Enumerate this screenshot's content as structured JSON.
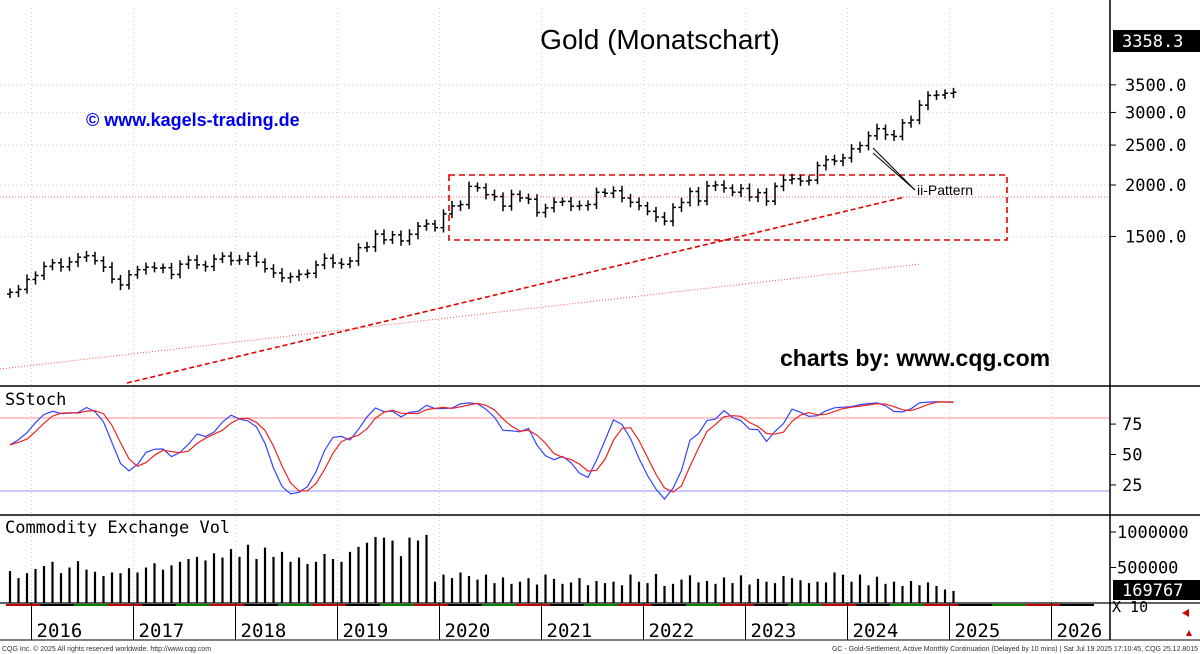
{
  "chart_data": {
    "type": "ohlc",
    "title": "Gold (Monatschart)",
    "watermark_left": "© www.kagels-trading.de",
    "watermark_right": "charts by: www.cqg.com",
    "annotation": "ii-Pattern",
    "last_price_label": "3358.3",
    "price_axis": {
      "scale": "log",
      "range": [
        1100,
        3700
      ],
      "ticks": [
        {
          "value": 1500,
          "label": "1500.0"
        },
        {
          "value": 2000,
          "label": "2000.0"
        },
        {
          "value": 2500,
          "label": "2500.0"
        },
        {
          "value": 3000,
          "label": "3000.0"
        },
        {
          "value": 3500,
          "label": "3500.0"
        }
      ]
    },
    "x_axis": {
      "start": "2015-10",
      "end": "2026-11",
      "year_labels": [
        "2016",
        "2017",
        "2018",
        "2019",
        "2020",
        "2021",
        "2022",
        "2023",
        "2024",
        "2025",
        "2026"
      ]
    },
    "series": [
      {
        "values": [
          1098,
          1116,
          1180,
          1206,
          1269,
          1295,
          1266,
          1301,
          1336,
          1347,
          1310,
          1264,
          1182,
          1144,
          1211,
          1246,
          1264,
          1257,
          1260,
          1213,
          1285,
          1315,
          1280,
          1268,
          1322,
          1344,
          1311,
          1316,
          1343,
          1299,
          1253,
          1223,
          1190,
          1198,
          1214,
          1221,
          1279,
          1328,
          1293,
          1284,
          1308,
          1409,
          1415,
          1520,
          1472,
          1514,
          1463,
          1519,
          1589,
          1609,
          1576,
          1702,
          1780,
          1793,
          1985,
          1970,
          1895,
          1875,
          1777,
          1898,
          1860,
          1847,
          1715,
          1760,
          1818,
          1825,
          1777,
          1783,
          1794,
          1920,
          1910,
          1937,
          1859,
          1816,
          1781,
          1726,
          1672,
          1634,
          1765,
          1814,
          1929,
          1829,
          1990,
          2000,
          1965,
          1921,
          1962,
          1870,
          1916,
          1827,
          1985,
          2057,
          2071,
          2045,
          2054,
          2230,
          2303,
          2286,
          2327,
          2448,
          2493,
          2633,
          2740,
          2650,
          2624,
          2830,
          2875,
          3125,
          3300,
          3307,
          3340,
          3358
        ]
      }
    ],
    "stoch": {
      "label": "SStoch",
      "range": [
        0,
        100
      ],
      "ticks": [
        {
          "value": 25,
          "label": "25"
        },
        {
          "value": 50,
          "label": "50"
        },
        {
          "value": 75,
          "label": "75"
        }
      ],
      "upper_line": 80,
      "lower_line": 20
    },
    "volume": {
      "label": "Commodity Exchange Vol",
      "ticks": [
        {
          "value": 500000,
          "label": "500000"
        },
        {
          "value": 1000000,
          "label": "1000000"
        }
      ],
      "last_label": "169767",
      "multiplier_label": "X 10",
      "values": [
        450000,
        350000,
        420000,
        480000,
        520000,
        580000,
        420000,
        500000,
        590000,
        470000,
        440000,
        380000,
        430000,
        420000,
        490000,
        430000,
        500000,
        560000,
        470000,
        530000,
        580000,
        620000,
        650000,
        600000,
        700000,
        640000,
        760000,
        650000,
        820000,
        620000,
        780000,
        650000,
        720000,
        580000,
        640000,
        550000,
        580000,
        690000,
        620000,
        580000,
        720000,
        790000,
        850000,
        930000,
        920000,
        880000,
        660000,
        920000,
        880000,
        960000,
        300000,
        400000,
        350000,
        430000,
        380000,
        330000,
        400000,
        280000,
        360000,
        270000,
        300000,
        350000,
        260000,
        400000,
        340000,
        270000,
        290000,
        350000,
        250000,
        310000,
        280000,
        300000,
        250000,
        400000,
        300000,
        280000,
        410000,
        240000,
        270000,
        330000,
        390000,
        290000,
        310000,
        270000,
        360000,
        280000,
        390000,
        260000,
        340000,
        300000,
        280000,
        380000,
        350000,
        320000,
        280000,
        300000,
        290000,
        430000,
        400000,
        300000,
        400000,
        250000,
        370000,
        270000,
        300000,
        240000,
        310000,
        250000,
        290000,
        240000,
        190000,
        169767
      ]
    },
    "footer_left": "CQG Inc. © 2025 All rights reserved worldwide. http://www.cqg.com",
    "footer_right": "GC - Gold-Settlement, Active Monthly Continuation (Delayed by 10 mins) | Sat Jul 19 2025 17:10:45, CQG 25.12.8015"
  }
}
